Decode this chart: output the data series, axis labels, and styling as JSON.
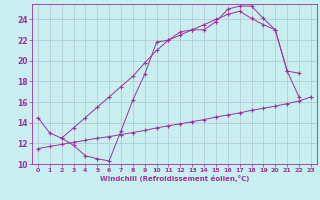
{
  "xlabel": "Windchill (Refroidissement éolien,°C)",
  "bg_color": "#c8eef0",
  "grid_color": "#aaddcc",
  "line_color": "#993399",
  "xlim": [
    -0.5,
    23.5
  ],
  "ylim": [
    10,
    25.5
  ],
  "xticks": [
    0,
    1,
    2,
    3,
    4,
    5,
    6,
    7,
    8,
    9,
    10,
    11,
    12,
    13,
    14,
    15,
    16,
    17,
    18,
    19,
    20,
    21,
    22,
    23
  ],
  "yticks": [
    10,
    12,
    14,
    16,
    18,
    20,
    22,
    24
  ],
  "line1_x": [
    0,
    1,
    2,
    3,
    4,
    5,
    6,
    7,
    8,
    9,
    10,
    11,
    12,
    13,
    14,
    15,
    16,
    17,
    18,
    19,
    20,
    21,
    22
  ],
  "line1_y": [
    14.5,
    13.0,
    12.5,
    11.8,
    10.8,
    10.5,
    10.3,
    13.2,
    16.2,
    18.7,
    21.8,
    22.0,
    22.8,
    23.0,
    23.0,
    23.8,
    25.0,
    25.3,
    25.3,
    24.1,
    23.0,
    19.0,
    16.5
  ],
  "line2_x": [
    0,
    1,
    2,
    3,
    4,
    5,
    6,
    7,
    8,
    9,
    10,
    11,
    12,
    13,
    14,
    15,
    16,
    17,
    18,
    19,
    20,
    21,
    22,
    23
  ],
  "line2_y": [
    11.5,
    11.7,
    11.9,
    12.1,
    12.3,
    12.5,
    12.65,
    12.85,
    13.05,
    13.25,
    13.5,
    13.7,
    13.9,
    14.1,
    14.3,
    14.55,
    14.75,
    14.95,
    15.2,
    15.4,
    15.6,
    15.85,
    16.1,
    16.5
  ],
  "line3_x": [
    2,
    3,
    4,
    5,
    6,
    7,
    8,
    9,
    10,
    11,
    12,
    13,
    14,
    15,
    16,
    17,
    18,
    19,
    20,
    21,
    22
  ],
  "line3_y": [
    12.5,
    13.5,
    14.5,
    15.5,
    16.5,
    17.5,
    18.5,
    19.8,
    21.0,
    22.0,
    22.5,
    23.0,
    23.5,
    24.0,
    24.5,
    24.8,
    24.1,
    23.5,
    23.0,
    19.0,
    18.8
  ]
}
